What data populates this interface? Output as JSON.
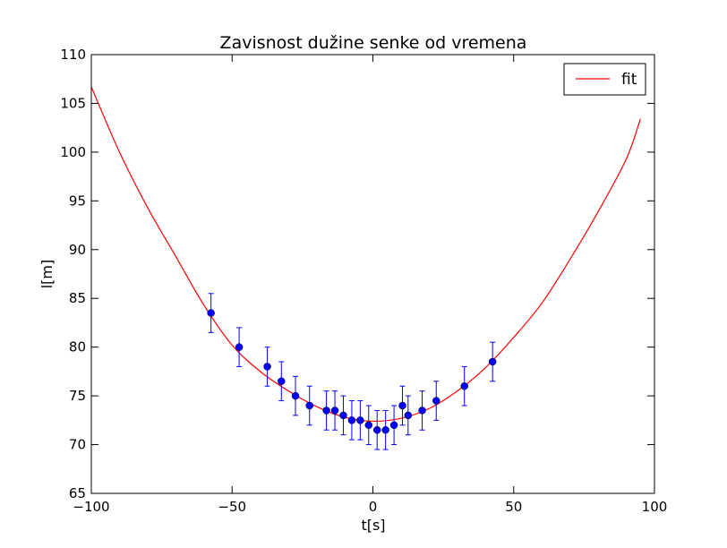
{
  "chart_data": {
    "type": "scatter",
    "title": "Zavisnost dužine senke od vremena",
    "xlabel": "t[s]",
    "ylabel": "l[m]",
    "xlim": [
      -100,
      100
    ],
    "ylim": [
      65,
      110
    ],
    "xticks": [
      -100,
      -50,
      0,
      50,
      100
    ],
    "xtick_labels": [
      "−100",
      "−50",
      "0",
      "50",
      "100"
    ],
    "yticks": [
      65,
      70,
      75,
      80,
      85,
      90,
      95,
      100,
      105,
      110
    ],
    "ytick_labels": [
      "65",
      "70",
      "75",
      "80",
      "85",
      "90",
      "95",
      "100",
      "105",
      "110"
    ],
    "grid": false,
    "legend": {
      "position": "top-right",
      "entries": [
        "fit"
      ]
    },
    "colors": {
      "fit": "#ff0000",
      "points": "#0000ff",
      "errorbars": "#0000ff"
    },
    "series": [
      {
        "kind": "points-with-errorbars",
        "x": [
          -57.5,
          -47.5,
          -37.5,
          -32.5,
          -27.5,
          -22.5,
          -16.5,
          -13.5,
          -10.5,
          -7.5,
          -4.5,
          -1.5,
          1.5,
          4.5,
          7.5,
          10.5,
          12.5,
          17.5,
          22.5,
          32.5,
          42.5
        ],
        "y": [
          83.5,
          80.0,
          78.0,
          76.5,
          75.0,
          74.0,
          73.5,
          73.5,
          73.0,
          72.5,
          72.5,
          72.0,
          71.5,
          71.5,
          72.0,
          74.0,
          73.0,
          73.5,
          74.5,
          76.0,
          78.5
        ],
        "yerr": 2.0
      },
      {
        "name": "fit",
        "kind": "line",
        "x": [
          -100,
          -90,
          -80,
          -70,
          -60,
          -50,
          -40,
          -30,
          -20,
          -10,
          0,
          10,
          20,
          30,
          40,
          50,
          60,
          70,
          80,
          90,
          95
        ],
        "y": [
          106.7,
          100.0,
          94.3,
          89.3,
          84.3,
          80.2,
          77.5,
          75.5,
          73.9,
          72.8,
          72.4,
          72.7,
          73.7,
          75.5,
          77.9,
          81.0,
          84.5,
          89.0,
          93.9,
          99.3,
          103.4
        ]
      }
    ]
  }
}
